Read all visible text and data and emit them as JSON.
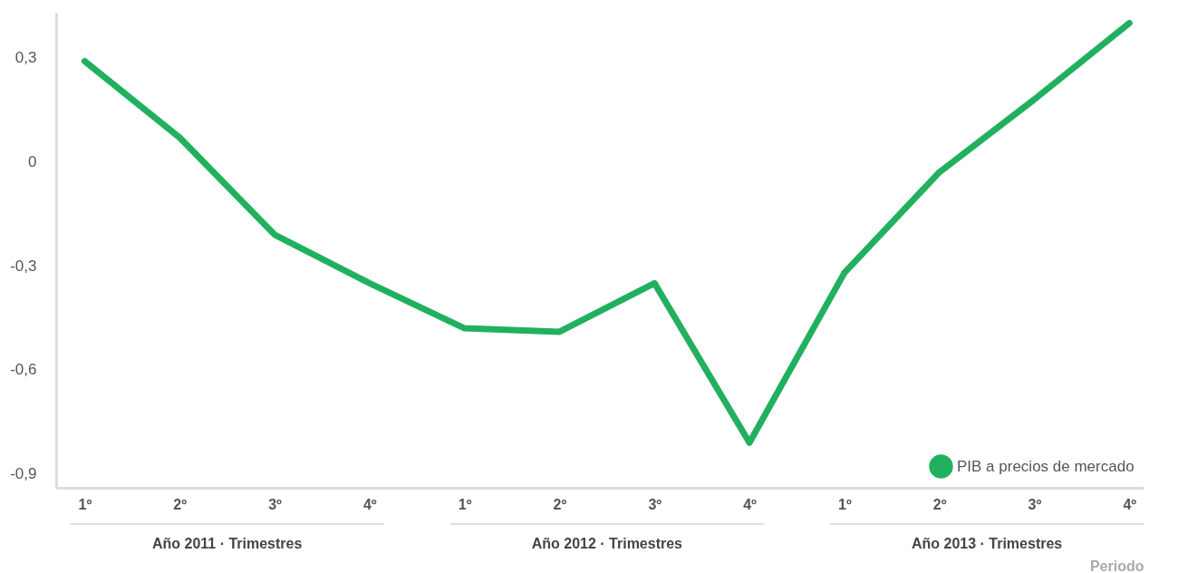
{
  "chart_data": {
    "type": "line",
    "xlabel": "Periodo",
    "categories": [
      "1º",
      "2º",
      "3º",
      "4º",
      "1º",
      "2º",
      "3º",
      "4º",
      "1º",
      "2º",
      "3º",
      "4º"
    ],
    "series": [
      {
        "name": "PIB a precios de mercado",
        "color": "#21b05e",
        "values": [
          0.29,
          0.07,
          -0.21,
          -0.35,
          -0.48,
          -0.49,
          -0.35,
          -0.81,
          -0.32,
          -0.03,
          0.18,
          0.4
        ]
      }
    ],
    "annotations": [
      "Año 2011 · Trimestres",
      "Año 2012 · Trimestres",
      "Año 2013 · Trimestres"
    ],
    "ylim": [
      -0.94,
      0.43
    ],
    "yticks": [
      {
        "value": 0.3,
        "label": "0,3"
      },
      0,
      {
        "value": -0.3,
        "label": "-0,3"
      },
      {
        "value": -0.6,
        "label": "-0,6"
      },
      {
        "value": -0.9,
        "label": "-0,9"
      }
    ],
    "grid": false,
    "legend": "bottom right",
    "marker": "none",
    "line_style": "solid"
  }
}
